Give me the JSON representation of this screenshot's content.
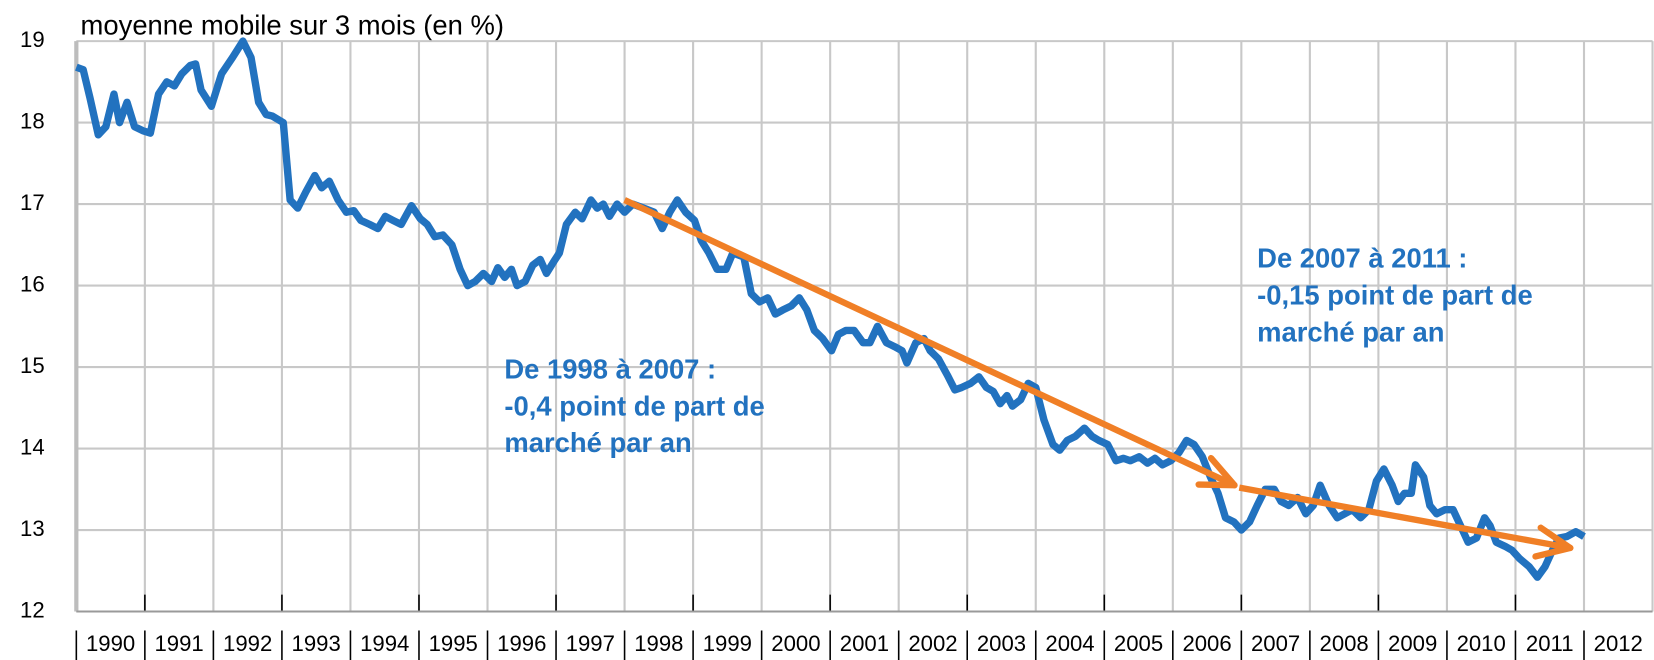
{
  "chart_data": {
    "type": "line",
    "title": "moyenne mobile sur 3 mois (en %)",
    "xlim": [
      1990,
      2013
    ],
    "xticks": [
      1990,
      1991,
      1992,
      1993,
      1994,
      1995,
      1996,
      1997,
      1998,
      1999,
      2000,
      2001,
      2002,
      2003,
      2004,
      2005,
      2006,
      2007,
      2008,
      2009,
      2010,
      2011,
      2012
    ],
    "ylim": [
      12,
      19
    ],
    "yticks": [
      12,
      13,
      14,
      15,
      16,
      17,
      18,
      19
    ],
    "grid": true,
    "series": [
      {
        "color": "#2272bf",
        "x": [
          1990.0,
          1990.1,
          1990.2,
          1990.32,
          1990.43,
          1990.55,
          1990.63,
          1990.74,
          1990.85,
          1990.97,
          1991.08,
          1991.2,
          1991.32,
          1991.43,
          1991.54,
          1991.66,
          1991.74,
          1991.82,
          1991.97,
          1992.12,
          1992.28,
          1992.43,
          1992.55,
          1992.66,
          1992.77,
          1992.86,
          1993.02,
          1993.12,
          1993.23,
          1993.35,
          1993.48,
          1993.58,
          1993.69,
          1993.82,
          1993.94,
          1994.05,
          1994.15,
          1994.28,
          1994.4,
          1994.51,
          1994.62,
          1994.74,
          1994.89,
          1995.02,
          1995.12,
          1995.23,
          1995.35,
          1995.48,
          1995.6,
          1995.71,
          1995.82,
          1995.94,
          1996.06,
          1996.15,
          1996.25,
          1996.35,
          1996.43,
          1996.55,
          1996.66,
          1996.77,
          1996.86,
          1996.97,
          1997.05,
          1997.15,
          1997.28,
          1997.38,
          1997.51,
          1997.6,
          1997.69,
          1997.78,
          1997.89,
          1998.0,
          1998.12,
          1998.28,
          1998.43,
          1998.55,
          1998.66,
          1998.77,
          1998.89,
          1999.02,
          1999.12,
          1999.23,
          1999.35,
          1999.48,
          1999.58,
          1999.74,
          1999.85,
          1999.97,
          2000.09,
          2000.2,
          2000.31,
          2000.43,
          2000.55,
          2000.66,
          2000.77,
          2000.89,
          2001.02,
          2001.12,
          2001.23,
          2001.35,
          2001.48,
          2001.58,
          2001.69,
          2001.82,
          2001.94,
          2002.05,
          2002.12,
          2002.25,
          2002.37,
          2002.46,
          2002.58,
          2002.71,
          2002.82,
          2002.92,
          2003.05,
          2003.17,
          2003.28,
          2003.38,
          2003.48,
          2003.58,
          2003.66,
          2003.78,
          2003.89,
          2004.0,
          2004.12,
          2004.25,
          2004.35,
          2004.46,
          2004.58,
          2004.71,
          2004.82,
          2004.92,
          2005.05,
          2005.17,
          2005.28,
          2005.38,
          2005.51,
          2005.63,
          2005.74,
          2005.85,
          2005.97,
          2006.09,
          2006.2,
          2006.31,
          2006.43,
          2006.55,
          2006.66,
          2006.77,
          2006.89,
          2007.0,
          2007.12,
          2007.23,
          2007.35,
          2007.48,
          2007.58,
          2007.69,
          2007.82,
          2007.94,
          2008.05,
          2008.15,
          2008.28,
          2008.4,
          2008.51,
          2008.62,
          2008.74,
          2008.86,
          2008.97,
          2009.08,
          2009.2,
          2009.29,
          2009.38,
          2009.48,
          2009.54,
          2009.66,
          2009.75,
          2009.85,
          2009.97,
          2010.09,
          2010.2,
          2010.31,
          2010.43,
          2010.55,
          2010.63,
          2010.72,
          2010.85,
          2010.95,
          2011.06,
          2011.2,
          2011.32,
          2011.43,
          2011.54,
          2011.63,
          2011.75,
          2011.88,
          2012.0
        ],
        "values": [
          18.68,
          18.65,
          18.3,
          17.85,
          17.95,
          18.35,
          18.0,
          18.25,
          17.95,
          17.9,
          17.87,
          18.35,
          18.5,
          18.45,
          18.6,
          18.7,
          18.72,
          18.4,
          18.2,
          18.6,
          18.8,
          19.0,
          18.8,
          18.25,
          18.1,
          18.08,
          18.0,
          17.05,
          16.95,
          17.15,
          17.35,
          17.2,
          17.28,
          17.05,
          16.9,
          16.92,
          16.8,
          16.75,
          16.7,
          16.85,
          16.8,
          16.75,
          16.98,
          16.82,
          16.75,
          16.6,
          16.62,
          16.5,
          16.2,
          16.0,
          16.05,
          16.15,
          16.05,
          16.22,
          16.1,
          16.2,
          16.0,
          16.05,
          16.25,
          16.32,
          16.15,
          16.3,
          16.4,
          16.75,
          16.9,
          16.82,
          17.05,
          16.95,
          17.0,
          16.85,
          17.0,
          16.9,
          17.0,
          16.95,
          16.9,
          16.7,
          16.9,
          17.05,
          16.9,
          16.8,
          16.55,
          16.4,
          16.2,
          16.2,
          16.4,
          16.35,
          15.9,
          15.8,
          15.85,
          15.65,
          15.7,
          15.75,
          15.85,
          15.7,
          15.45,
          15.35,
          15.2,
          15.4,
          15.45,
          15.45,
          15.3,
          15.3,
          15.5,
          15.3,
          15.25,
          15.2,
          15.05,
          15.3,
          15.35,
          15.2,
          15.1,
          14.9,
          14.72,
          14.75,
          14.8,
          14.88,
          14.75,
          14.7,
          14.55,
          14.65,
          14.52,
          14.6,
          14.8,
          14.75,
          14.35,
          14.05,
          13.98,
          14.1,
          14.15,
          14.25,
          14.15,
          14.1,
          14.05,
          13.85,
          13.88,
          13.85,
          13.9,
          13.82,
          13.88,
          13.8,
          13.85,
          13.95,
          14.1,
          14.05,
          13.9,
          13.65,
          13.45,
          13.15,
          13.1,
          13.0,
          13.1,
          13.3,
          13.5,
          13.5,
          13.35,
          13.3,
          13.4,
          13.2,
          13.3,
          13.55,
          13.3,
          13.15,
          13.2,
          13.25,
          13.15,
          13.25,
          13.6,
          13.75,
          13.55,
          13.35,
          13.45,
          13.45,
          13.8,
          13.65,
          13.3,
          13.2,
          13.25,
          13.25,
          13.05,
          12.85,
          12.9,
          13.15,
          13.05,
          12.85,
          12.8,
          12.75,
          12.65,
          12.55,
          12.42,
          12.55,
          12.75,
          12.9,
          12.92,
          12.98,
          12.92
        ]
      }
    ],
    "trends": [
      {
        "color": "#f07f26",
        "x": [
          1998.0,
          2006.9
        ],
        "y": [
          17.05,
          13.55
        ],
        "label": [
          "De 1998 à 2007 :",
          "-0,4 point de part de",
          "marché par an"
        ]
      },
      {
        "color": "#f07f26",
        "x": [
          2006.97,
          2011.8
        ],
        "y": [
          13.52,
          12.78
        ],
        "label": [
          "De 2007 à 2011 :",
          "-0,15 point de part de",
          "marché par an"
        ]
      }
    ]
  }
}
